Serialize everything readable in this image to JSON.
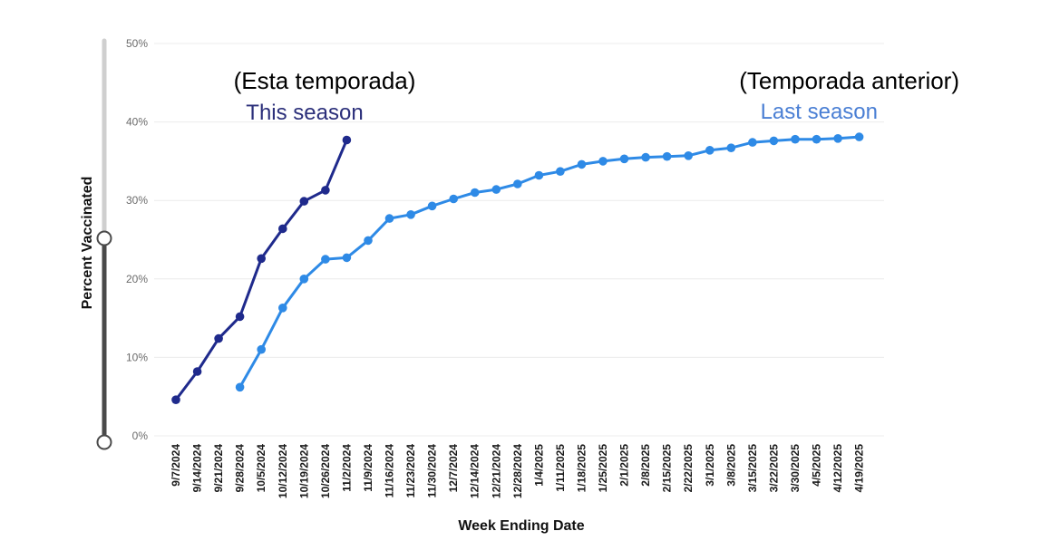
{
  "chart_data": {
    "type": "line",
    "title": "",
    "xlabel": "Week Ending Date",
    "ylabel": "Percent Vaccinated",
    "ylim": [
      0,
      50
    ],
    "yticks": [
      "0%",
      "10%",
      "20%",
      "30%",
      "40%",
      "50%"
    ],
    "grid": true,
    "categories": [
      "9/7/2024",
      "9/14/2024",
      "9/21/2024",
      "9/28/2024",
      "10/5/2024",
      "10/12/2024",
      "10/19/2024",
      "10/26/2024",
      "11/2/2024",
      "11/9/2024",
      "11/16/2024",
      "11/23/2024",
      "11/30/2024",
      "12/7/2024",
      "12/14/2024",
      "12/21/2024",
      "12/28/2024",
      "1/4/2025",
      "1/11/2025",
      "1/18/2025",
      "1/25/2025",
      "2/1/2025",
      "2/8/2025",
      "2/15/2025",
      "2/22/2025",
      "3/1/2025",
      "3/8/2025",
      "3/15/2025",
      "3/22/2025",
      "3/30/2025",
      "4/5/2025",
      "4/12/2025",
      "4/19/2025"
    ],
    "series": [
      {
        "name": "This season",
        "color": "#1f2a8c",
        "values": [
          4.6,
          8.2,
          12.4,
          15.2,
          22.6,
          26.4,
          29.9,
          31.3,
          37.7,
          null,
          null,
          null,
          null,
          null,
          null,
          null,
          null,
          null,
          null,
          null,
          null,
          null,
          null,
          null,
          null,
          null,
          null,
          null,
          null,
          null,
          null,
          null,
          null
        ]
      },
      {
        "name": "Last season",
        "color": "#2e8ae6",
        "values": [
          null,
          null,
          null,
          6.2,
          11.0,
          16.3,
          20.0,
          22.5,
          22.7,
          24.9,
          27.7,
          28.2,
          29.3,
          30.2,
          31.0,
          31.4,
          32.1,
          33.2,
          33.7,
          34.6,
          35.0,
          35.3,
          35.5,
          35.6,
          35.7,
          36.4,
          36.7,
          37.4,
          37.6,
          37.8,
          37.8,
          37.9,
          38.1
        ]
      }
    ],
    "annotations": [
      {
        "text": "(Esta temporada)",
        "series": "This season"
      },
      {
        "text": "This season",
        "series": "This season"
      },
      {
        "text": "(Temporada anterior)",
        "series": "Last season"
      },
      {
        "text": "Last season",
        "series": "Last season"
      }
    ]
  },
  "colors": {
    "this_season": "#1f2a8c",
    "last_season": "#2e8ae6",
    "this_season_label": "#2b2f7a",
    "last_season_label": "#4a7fd4",
    "grid": "#ececec",
    "slider_track": "#4a4a4a",
    "slider_track_upper": "#cfcfcf"
  }
}
